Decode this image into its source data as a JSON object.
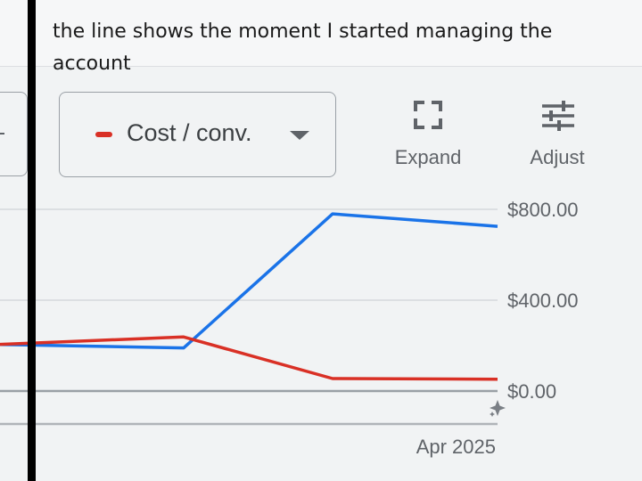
{
  "annotation": {
    "text": "the line shows the moment I started managing the account"
  },
  "metric_selector": {
    "label": "Cost / conv.",
    "color": "#d93025"
  },
  "toolbar": {
    "expand_label": "Expand",
    "adjust_label": "Adjust"
  },
  "icons": {
    "expand": "expand-icon",
    "adjust": "tune-sliders-icon",
    "caret": "caret-down-icon",
    "sparkle": "sparkle-icon"
  },
  "chart_data": {
    "type": "line",
    "x": [
      0,
      1,
      2,
      3
    ],
    "series": [
      {
        "values": [
          205,
          190,
          780,
          725
        ],
        "color": "#1a73e8"
      },
      {
        "values": [
          205,
          238,
          55,
          52
        ],
        "color": "#d93025"
      }
    ],
    "y_ticks": [
      {
        "value": 0,
        "label": "$0.00"
      },
      {
        "value": 400,
        "label": "$400.00"
      },
      {
        "value": 800,
        "label": "$800.00"
      }
    ],
    "ylim": [
      0,
      800
    ],
    "x_tick_labels": [
      "Apr 2025"
    ],
    "grid": true
  }
}
